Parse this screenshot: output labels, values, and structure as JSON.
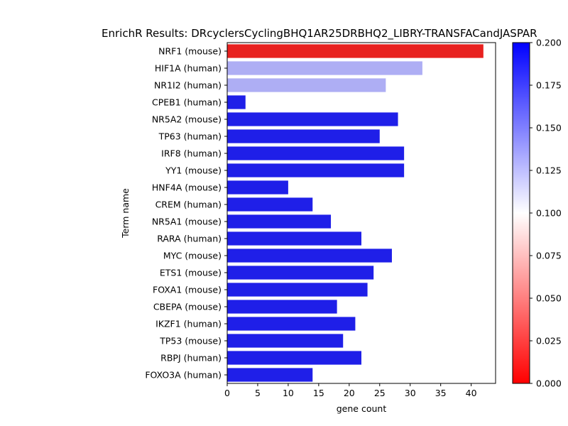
{
  "chart_data": {
    "type": "bar",
    "orientation": "horizontal",
    "title": "EnrichR Results: DRcyclersCyclingBHQ1AR25DRBHQ2_LIBRY-TRANSFACandJASPAR",
    "xlabel": "gene count",
    "ylabel": "Term name",
    "xlim": [
      0,
      44
    ],
    "xticks": [
      0,
      5,
      10,
      15,
      20,
      25,
      30,
      35,
      40
    ],
    "categories": [
      "NRF1 (mouse)",
      "HIF1A (human)",
      "NR1I2 (human)",
      "CPEB1 (human)",
      "NR5A2 (mouse)",
      "TP63 (human)",
      "IRF8 (human)",
      "YY1 (mouse)",
      "HNF4A (mouse)",
      "CREM (human)",
      "NR5A1 (mouse)",
      "RARA (human)",
      "MYC (mouse)",
      "ETS1 (mouse)",
      "FOXA1 (mouse)",
      "CBEPA (mouse)",
      "IKZF1 (human)",
      "TP53 (mouse)",
      "RBPJ (human)",
      "FOXO3A (human)"
    ],
    "values": [
      42,
      32,
      26,
      3,
      28,
      25,
      29,
      29,
      10,
      14,
      17,
      22,
      27,
      24,
      23,
      18,
      21,
      19,
      22,
      14
    ],
    "bar_colors": [
      "#e8211f",
      "#aeaef4",
      "#aeaef4",
      "#1f1fe8",
      "#1f1fe8",
      "#1f1fe8",
      "#1f1fe8",
      "#1f1fe8",
      "#1f1fe8",
      "#1f1fe8",
      "#1f1fe8",
      "#1f1fe8",
      "#1f1fe8",
      "#1f1fe8",
      "#1f1fe8",
      "#1f1fe8",
      "#1f1fe8",
      "#1f1fe8",
      "#1f1fe8",
      "#1f1fe8"
    ],
    "colorbar": {
      "colormap": "bwr_r",
      "range": [
        0.0,
        0.2
      ],
      "ticks": [
        "0.000",
        "0.025",
        "0.050",
        "0.075",
        "0.100",
        "0.125",
        "0.150",
        "0.175",
        "0.200"
      ]
    },
    "grid": false,
    "legend": "none"
  }
}
